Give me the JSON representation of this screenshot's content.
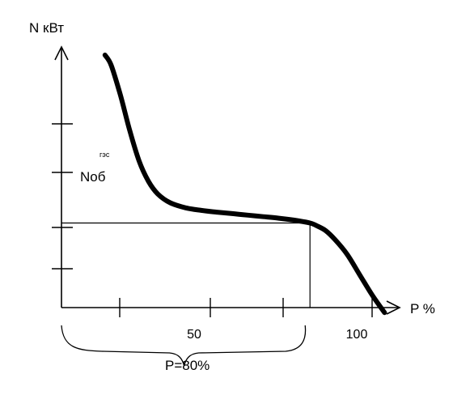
{
  "chart_data": {
    "type": "line",
    "ylabel": "N кВт",
    "xlabel": "P %",
    "x_ticks": [
      25,
      50,
      75,
      100
    ],
    "x_tick_labels": [
      "50",
      "100"
    ],
    "x_tick_labeled_values": [
      50,
      100
    ],
    "y_ticks_count": 5,
    "xlim": [
      0,
      100
    ],
    "series": [
      {
        "x": [
          14,
          16,
          19,
          22,
          25,
          28,
          31,
          35,
          40,
          45,
          50,
          55,
          60,
          65,
          70,
          75,
          80,
          82,
          85,
          88,
          92,
          96,
          100,
          104
        ],
        "y": [
          100,
          96,
          84,
          70,
          58,
          50,
          45,
          41.5,
          39.5,
          38.5,
          37.8,
          37.2,
          36.6,
          36,
          35.4,
          34.6,
          33.5,
          32.5,
          30.5,
          27,
          21,
          13,
          5,
          -2
        ]
      }
    ],
    "marker": {
      "x": 80,
      "y": 33.5
    },
    "annotations": {
      "level_label": "Nоб",
      "level_superscript": "гэс",
      "brace_label": "P=80%"
    }
  }
}
